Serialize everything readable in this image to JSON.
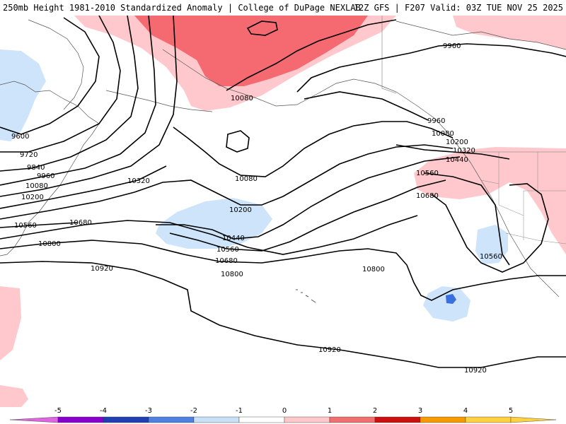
{
  "header": {
    "left_title": "250mb Height 1981-2010 Standardized Anomaly | College of DuPage NEXLAB",
    "right_title": "12Z GFS | F207 Valid: 03Z TUE NOV 25 2025"
  },
  "colorbar": {
    "ticks": [
      "-5",
      "-4",
      "-3",
      "-2",
      "-1",
      "0",
      "1",
      "2",
      "3",
      "4",
      "5"
    ],
    "colors": [
      "#e066e0",
      "#8800cc",
      "#1f3fb0",
      "#4f7fe0",
      "#c8e0fa",
      "#ffffff",
      "#ffc8c8",
      "#f07070",
      "#cc1010",
      "#f59a00",
      "#ffd040"
    ]
  },
  "anomaly_colors": {
    "pos1": "#ffc8cc",
    "pos2": "#f56a70",
    "neg1": "#cde4fb",
    "neg2": "#3a6fe0"
  },
  "contour_labels": [
    {
      "id": "l9960a",
      "text": "9960"
    },
    {
      "id": "l10080a",
      "text": "10080"
    },
    {
      "id": "l9600",
      "text": "9600"
    },
    {
      "id": "l9720",
      "text": "9720"
    },
    {
      "id": "l9840",
      "text": "9840"
    },
    {
      "id": "l9960b",
      "text": "9960"
    },
    {
      "id": "l10080b",
      "text": "10080"
    },
    {
      "id": "l10200a",
      "text": "10200"
    },
    {
      "id": "l10320a",
      "text": "10320"
    },
    {
      "id": "l10560a",
      "text": "10560"
    },
    {
      "id": "l10680a",
      "text": "10680"
    },
    {
      "id": "l10800a",
      "text": "10800"
    },
    {
      "id": "l10920a",
      "text": "10920"
    },
    {
      "id": "l10080c",
      "text": "10080"
    },
    {
      "id": "l10200b",
      "text": "10200"
    },
    {
      "id": "l10440a",
      "text": "10440"
    },
    {
      "id": "l10560b",
      "text": "10560"
    },
    {
      "id": "l10680b",
      "text": "10680"
    },
    {
      "id": "l10800b",
      "text": "10800"
    },
    {
      "id": "l10800c",
      "text": "10800"
    },
    {
      "id": "l9960c",
      "text": "9960"
    },
    {
      "id": "l10080d",
      "text": "10080"
    },
    {
      "id": "l10200c",
      "text": "10200"
    },
    {
      "id": "l10320b",
      "text": "10320"
    },
    {
      "id": "l10440b",
      "text": "10440"
    },
    {
      "id": "l10560c",
      "text": "10560"
    },
    {
      "id": "l10680c",
      "text": "10680"
    },
    {
      "id": "l10560d",
      "text": "10560"
    },
    {
      "id": "l10920b",
      "text": "10920"
    },
    {
      "id": "l10920c",
      "text": "10920"
    }
  ]
}
